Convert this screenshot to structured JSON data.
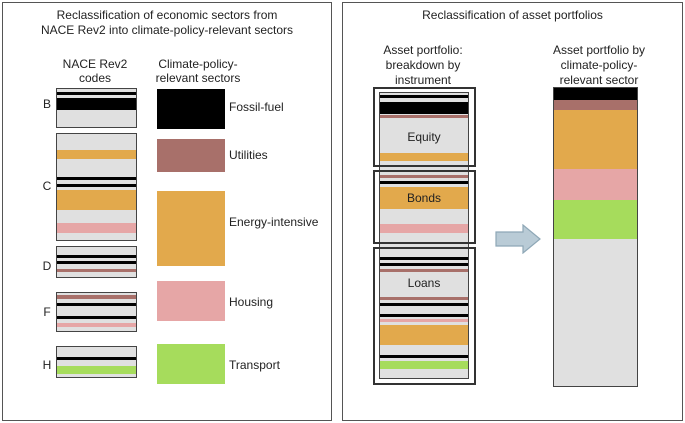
{
  "left_panel": {
    "title_line1": "Reclassification of economic sectors from",
    "title_line2": "NACE Rev2 into climate-policy-relevant sectors",
    "nace_header_line1": "NACE Rev2",
    "nace_header_line2": "codes",
    "sector_header_line1": "Climate-policy-",
    "sector_header_line2": "relevant sectors",
    "codes": [
      "B",
      "C",
      "D",
      "F",
      "H"
    ],
    "sectors": [
      {
        "name": "Fossil-fuel",
        "color": "#000000"
      },
      {
        "name": "Utilities",
        "color": "#a8706a"
      },
      {
        "name": "Energy-intensive",
        "color": "#e2a94c"
      },
      {
        "name": "Housing",
        "color": "#e6a6a6"
      },
      {
        "name": "Transport",
        "color": "#a6dc5c"
      }
    ]
  },
  "right_panel": {
    "title": "Reclassification of asset portfolios",
    "instrument_header_line1": "Asset portfolio:",
    "instrument_header_line2": "breakdown by",
    "instrument_header_line3": "instrument",
    "sector_header_line1": "Asset portfolio by",
    "sector_header_line2": "climate-policy-",
    "sector_header_line3": "relevant sector",
    "instruments": [
      "Equity",
      "Bonds",
      "Loans"
    ],
    "arrow": "right-arrow-icon"
  },
  "colors": {
    "fossil": "#000000",
    "utilities": "#a8706a",
    "energy": "#e2a94c",
    "housing": "#e6a6a6",
    "transport": "#a6dc5c",
    "other": "#e0e0e0",
    "arrow_fill": "#b9cbd6",
    "arrow_stroke": "#8ea7b6"
  }
}
